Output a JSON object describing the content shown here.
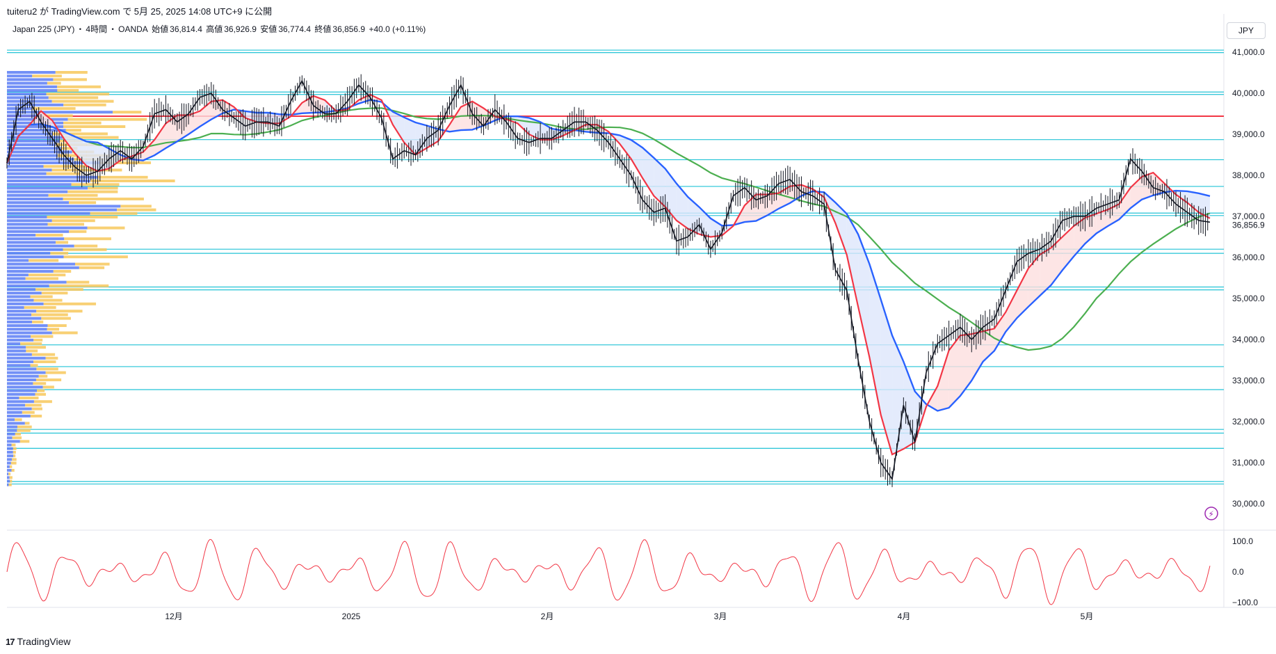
{
  "header": {
    "publish_line": "tuiteru2 が TradingView.com で 5月 25, 2025 14:08 UTC+9 に公開"
  },
  "legend": {
    "symbol": "Japan 225 (JPY)",
    "sep1": "・",
    "interval": "4時間",
    "sep2": "・",
    "broker": "OANDA",
    "open_label": "始値",
    "open": "36,814.4",
    "high_label": "高値",
    "high": "36,926.9",
    "low_label": "安値",
    "low": "36,774.4",
    "close_label": "終値",
    "close": "36,856.9",
    "change": "+40.0 (+0.11%)"
  },
  "currency_button": "JPY",
  "footer": {
    "logo": "17",
    "brand": "TradingView"
  },
  "colors": {
    "price": "#131722",
    "ma_fast": "#f23645",
    "ma_mid": "#2962ff",
    "ma_slow": "#4caf50",
    "hlines": "#22c3d6",
    "resistance": "#f23645",
    "vp_up": "#5b7cf5",
    "vp_down": "#f7c85c",
    "oscillator": "#f23645",
    "cloud_bull": "#fcdede",
    "cloud_bear": "#dde6fb"
  },
  "chart_data": [
    {
      "type": "line",
      "name": "price",
      "y_axis_ticks": [
        "41,000.0",
        "40,000.0",
        "39,000.0",
        "38,000.0",
        "37,000.0",
        "36,000.0",
        "35,000.0",
        "34,000.0",
        "33,000.0",
        "32,000.0",
        "31,000.0",
        "30,000.0"
      ],
      "last_price_label": "36,856.9",
      "ylim": [
        29850,
        41200
      ],
      "x_ticks": [
        "12月",
        "2025",
        "2月",
        "3月",
        "4月",
        "5月"
      ],
      "horizontal_levels": [
        41050,
        40990,
        40030,
        39970,
        39440,
        38870,
        38380,
        37730,
        37080,
        37020,
        36200,
        36100,
        35280,
        35210,
        33870,
        33340,
        32780,
        31810,
        31720,
        31350,
        30540,
        30480
      ],
      "resistance_level": 39440,
      "x": [
        0,
        14,
        28,
        42,
        56,
        70,
        84,
        98,
        112,
        126,
        140,
        154,
        168,
        182,
        196,
        210,
        224,
        238,
        252,
        266,
        280,
        294,
        308,
        322,
        336,
        350,
        364,
        378,
        392,
        406,
        420,
        434,
        448,
        462,
        476,
        490,
        504,
        518,
        532,
        546,
        560,
        574,
        588,
        602,
        616,
        630,
        644,
        658,
        672,
        686,
        700,
        714,
        728,
        742,
        756,
        770,
        784,
        798,
        812,
        826,
        840,
        854,
        868,
        882,
        896,
        910,
        924,
        938,
        952,
        966,
        980,
        994,
        1008,
        1022,
        1036,
        1050,
        1064,
        1078,
        1092,
        1106,
        1120,
        1134,
        1148,
        1162,
        1176,
        1190,
        1204,
        1218,
        1232,
        1246,
        1260,
        1274,
        1288,
        1302,
        1316,
        1330,
        1344,
        1358,
        1372,
        1386,
        1400,
        1414,
        1428,
        1442,
        1456,
        1470,
        1484
      ],
      "values": [
        38300,
        39600,
        39800,
        39300,
        38900,
        38500,
        38200,
        38000,
        38100,
        38400,
        38600,
        38400,
        38700,
        39500,
        39600,
        39300,
        39500,
        39900,
        40000,
        39600,
        39400,
        39200,
        39300,
        39300,
        39200,
        39800,
        40300,
        39700,
        39500,
        39500,
        39800,
        40200,
        39900,
        39400,
        38400,
        38600,
        38500,
        38900,
        39100,
        39700,
        40200,
        39500,
        39200,
        39600,
        39300,
        38900,
        38800,
        38900,
        38900,
        39100,
        39300,
        39300,
        39100,
        38800,
        38400,
        38000,
        37400,
        37100,
        37200,
        36400,
        36500,
        36800,
        36200,
        36600,
        37500,
        37700,
        37400,
        37500,
        37800,
        37900,
        37600,
        37500,
        37300,
        35700,
        35200,
        33500,
        32000,
        31000,
        30600,
        32400,
        31500,
        33200,
        33900,
        34100,
        34300,
        34000,
        34300,
        34500,
        35200,
        35900,
        36100,
        36200,
        36400,
        36900,
        37000,
        37000,
        37200,
        37300,
        37400,
        38400,
        38100,
        37700,
        37600,
        37300,
        37100,
        36900,
        36860
      ]
    },
    {
      "type": "line",
      "name": "oscillator",
      "y_axis_ticks": [
        "100.0",
        "0.0",
        "−100.0"
      ],
      "ylim": [
        -130,
        130
      ]
    }
  ]
}
